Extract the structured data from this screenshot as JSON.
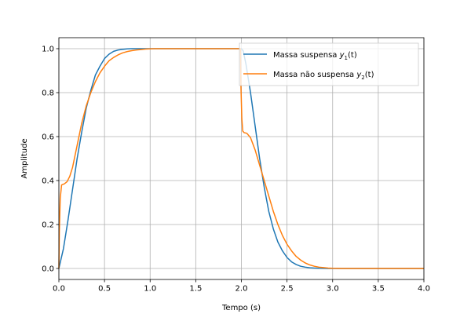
{
  "chart_data": {
    "type": "line",
    "title": "",
    "xlabel": "Tempo (s)",
    "ylabel": "Amplitude",
    "xlim": [
      0,
      4
    ],
    "ylim": [
      -0.05,
      1.05
    ],
    "xticks": [
      0,
      0.5,
      1,
      1.5,
      2,
      2.5,
      3,
      3.5,
      4
    ],
    "xtick_labels": [
      "0.0",
      "0.5",
      "1.0",
      "1.5",
      "2.0",
      "2.5",
      "3.0",
      "3.5",
      "4.0"
    ],
    "yticks": [
      0,
      0.2,
      0.4,
      0.6,
      0.8,
      1.0
    ],
    "ytick_labels": [
      "0.0",
      "0.2",
      "0.4",
      "0.6",
      "0.8",
      "1.0"
    ],
    "grid": true,
    "legend_position": "top-right",
    "series": [
      {
        "name_prefix": "Massa suspensa ",
        "name_symbol": "y",
        "name_sub": "1",
        "name_suffix": "(t)",
        "color": "#1f77b4",
        "x": [
          0,
          0.05,
          0.1,
          0.15,
          0.2,
          0.25,
          0.3,
          0.35,
          0.4,
          0.45,
          0.5,
          0.55,
          0.6,
          0.65,
          0.7,
          0.75,
          0.8,
          0.85,
          0.9,
          0.95,
          1.0,
          1.1,
          1.2,
          1.4,
          1.6,
          1.8,
          1.95,
          2.0,
          2.02,
          2.05,
          2.1,
          2.15,
          2.2,
          2.25,
          2.3,
          2.35,
          2.4,
          2.45,
          2.5,
          2.55,
          2.6,
          2.65,
          2.7,
          2.75,
          2.8,
          2.85,
          2.9,
          2.95,
          3.0,
          3.1,
          3.2,
          3.4,
          3.6,
          3.8,
          4.0
        ],
        "y": [
          0,
          0.09,
          0.22,
          0.36,
          0.5,
          0.62,
          0.73,
          0.81,
          0.88,
          0.92,
          0.955,
          0.975,
          0.988,
          0.994,
          0.997,
          0.999,
          1.0,
          1.0,
          1.0,
          1.0,
          1.0,
          1.0,
          1.0,
          1.0,
          1.0,
          1.0,
          1.0,
          1.0,
          0.99,
          0.93,
          0.8,
          0.65,
          0.5,
          0.37,
          0.26,
          0.18,
          0.12,
          0.08,
          0.05,
          0.03,
          0.018,
          0.01,
          0.006,
          0.003,
          0.002,
          0.001,
          0.0005,
          0.0002,
          0,
          0,
          0,
          0,
          0,
          0,
          0
        ]
      },
      {
        "name_prefix": "Massa não suspensa ",
        "name_symbol": "y",
        "name_sub": "2",
        "name_suffix": "(t)",
        "color": "#ff7f0e",
        "x": [
          0,
          0.005,
          0.015,
          0.03,
          0.06,
          0.09,
          0.12,
          0.15,
          0.2,
          0.25,
          0.3,
          0.35,
          0.4,
          0.45,
          0.5,
          0.55,
          0.6,
          0.65,
          0.7,
          0.75,
          0.8,
          0.85,
          0.9,
          0.95,
          1.0,
          1.05,
          1.1,
          1.2,
          1.4,
          1.6,
          1.8,
          1.99,
          1.995,
          2.005,
          2.015,
          2.03,
          2.06,
          2.1,
          2.15,
          2.2,
          2.25,
          2.3,
          2.35,
          2.4,
          2.45,
          2.5,
          2.55,
          2.6,
          2.65,
          2.7,
          2.75,
          2.8,
          2.85,
          2.9,
          2.95,
          3.0,
          3.1,
          3.2,
          3.3,
          3.4,
          3.6,
          3.8,
          4.0
        ],
        "y": [
          0,
          0.17,
          0.32,
          0.38,
          0.385,
          0.395,
          0.42,
          0.46,
          0.56,
          0.66,
          0.74,
          0.8,
          0.85,
          0.89,
          0.92,
          0.945,
          0.96,
          0.972,
          0.981,
          0.987,
          0.991,
          0.994,
          0.996,
          0.998,
          0.999,
          1.0,
          1.0,
          1.0,
          1.0,
          1.0,
          1.0,
          1.0,
          0.83,
          0.68,
          0.625,
          0.618,
          0.615,
          0.595,
          0.54,
          0.47,
          0.4,
          0.33,
          0.26,
          0.2,
          0.15,
          0.11,
          0.08,
          0.055,
          0.038,
          0.025,
          0.016,
          0.01,
          0.006,
          0.004,
          0.002,
          0.001,
          0,
          0,
          0,
          0,
          0,
          0,
          0
        ]
      }
    ]
  }
}
